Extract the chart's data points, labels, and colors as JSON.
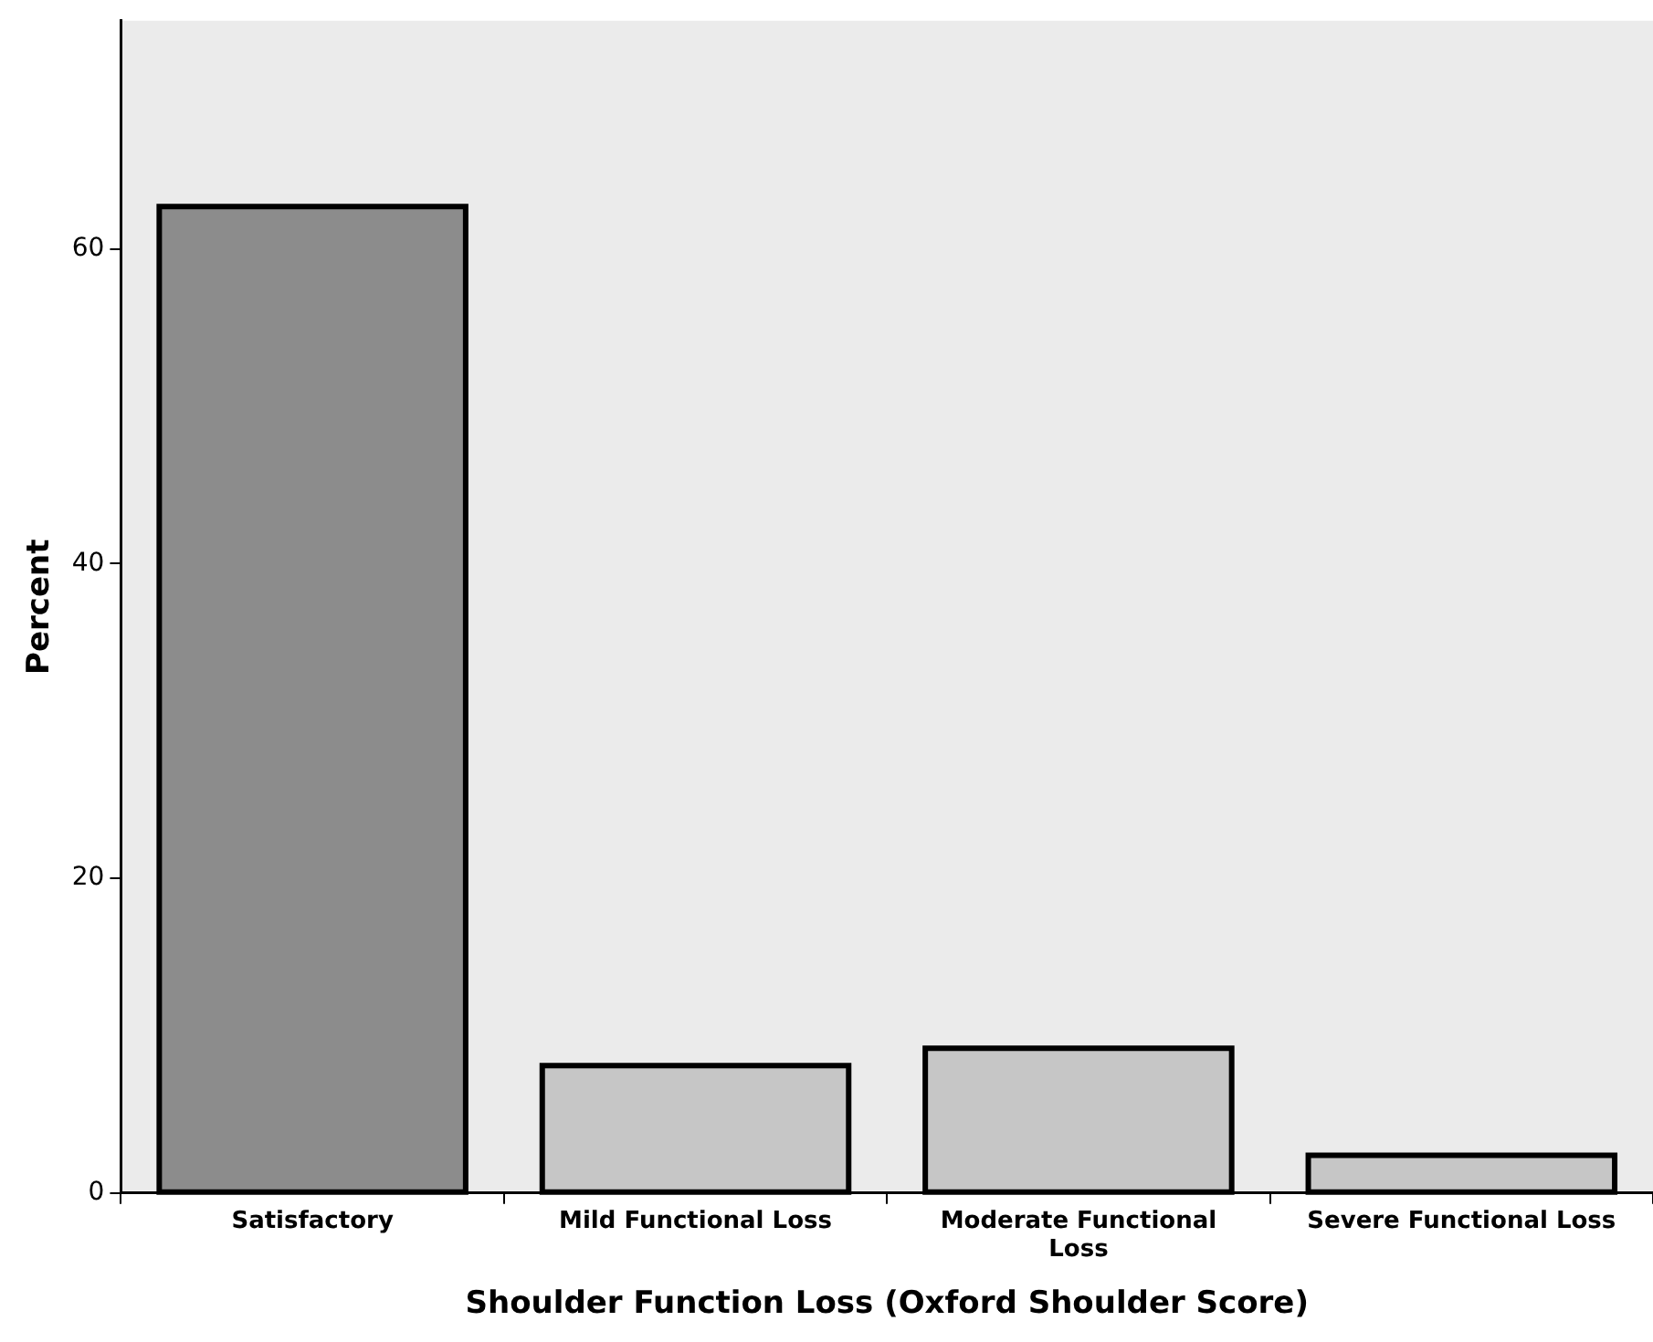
{
  "chart_data": {
    "type": "bar",
    "xlabel": "Shoulder Function Loss (Oxford Shoulder Score)",
    "ylabel": "Percent",
    "categories": [
      "Satisfactory",
      "Mild Functional Loss",
      "Moderate Functional Loss",
      "Severe Functional Loss"
    ],
    "values": [
      62.7,
      8.1,
      9.2,
      2.4
    ],
    "colors": [
      "#8c8c8c",
      "#c6c6c6",
      "#c6c6c6",
      "#c6c6c6"
    ],
    "ylim": [
      0,
      74.5
    ],
    "yticks": [
      0,
      20,
      40,
      60
    ],
    "grid": false,
    "legend": false
  }
}
